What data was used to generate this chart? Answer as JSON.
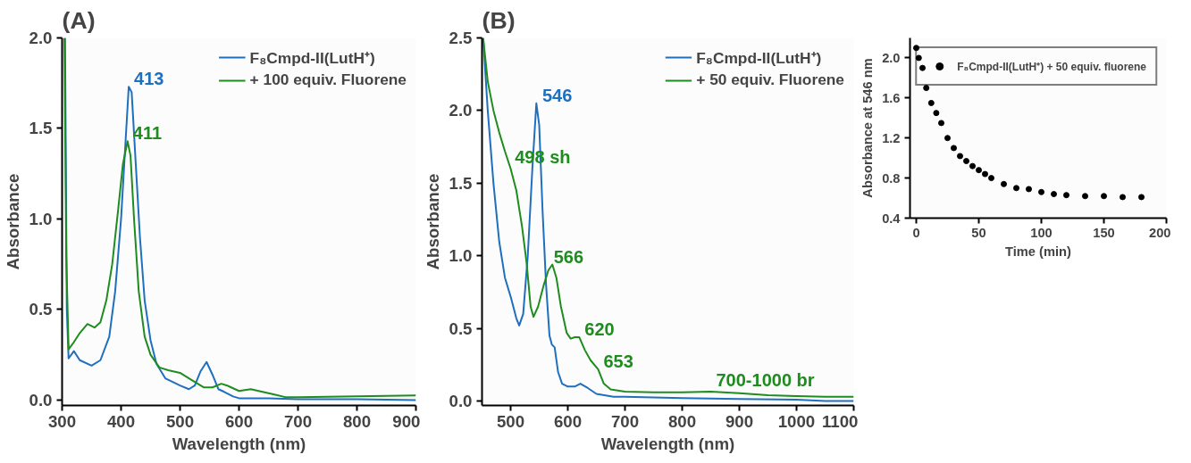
{
  "chart_data": [
    {
      "type": "line",
      "title": "(A)",
      "xlabel": "Wavelength (nm)",
      "ylabel": "Absorbance",
      "xlim": [
        300,
        900
      ],
      "ylim": [
        -0.03,
        2.0
      ],
      "xticks": [
        300,
        400,
        500,
        600,
        700,
        800,
        900
      ],
      "yticks": [
        {
          "value": 0,
          "label": "0.0"
        },
        0.5,
        {
          "value": 1,
          "label": "1.0"
        },
        1.5,
        {
          "value": 2,
          "label": "2.0"
        }
      ],
      "grid": false,
      "legend": "top right",
      "series": [
        {
          "name": "F₈Cmpd-II(LutH⁺)",
          "color": "#1f6fbf",
          "x": [
            305,
            308,
            311,
            320,
            330,
            350,
            365,
            380,
            390,
            400,
            408,
            413,
            418,
            425,
            432,
            440,
            450,
            460,
            475,
            500,
            515,
            525,
            535,
            545,
            555,
            565,
            575,
            590,
            600,
            650,
            700,
            800,
            900
          ],
          "values": [
            2.0,
            0.5,
            0.23,
            0.27,
            0.22,
            0.19,
            0.22,
            0.35,
            0.6,
            1.0,
            1.45,
            1.73,
            1.7,
            1.3,
            0.9,
            0.55,
            0.33,
            0.2,
            0.12,
            0.08,
            0.06,
            0.08,
            0.16,
            0.21,
            0.14,
            0.06,
            0.045,
            0.02,
            0.01,
            0.01,
            0.005,
            0.005,
            0.0
          ]
        },
        {
          "name": "+ 100 equiv. Fluorene",
          "color": "#1e8c1e",
          "x": [
            304,
            307,
            311,
            320,
            330,
            343,
            355,
            365,
            375,
            385,
            395,
            403,
            411,
            416,
            422,
            430,
            440,
            450,
            465,
            480,
            500,
            520,
            540,
            555,
            570,
            580,
            600,
            620,
            640,
            660,
            680,
            700,
            800,
            900
          ],
          "values": [
            2.0,
            0.8,
            0.28,
            0.32,
            0.37,
            0.42,
            0.4,
            0.43,
            0.55,
            0.75,
            1.05,
            1.3,
            1.43,
            1.35,
            1.0,
            0.6,
            0.35,
            0.25,
            0.18,
            0.165,
            0.15,
            0.11,
            0.07,
            0.07,
            0.09,
            0.08,
            0.05,
            0.06,
            0.045,
            0.03,
            0.015,
            0.015,
            0.02,
            0.025
          ]
        }
      ],
      "annotations": [
        {
          "text": "413",
          "x": 413,
          "y": 1.73
        },
        {
          "text": "411",
          "x": 411,
          "y": 1.43
        }
      ]
    },
    {
      "type": "line",
      "title": "(B)",
      "xlabel": "Wavelength (nm)",
      "ylabel": "Absorbance",
      "xlim": [
        450,
        1100
      ],
      "ylim": [
        -0.03,
        2.5
      ],
      "xticks": [
        500,
        600,
        700,
        800,
        900,
        1000,
        1100
      ],
      "yticks": [
        {
          "value": 0,
          "label": "0.0"
        },
        0.5,
        {
          "value": 1,
          "label": "1.0"
        },
        1.5,
        {
          "value": 2,
          "label": "2.0"
        },
        2.5
      ],
      "grid": false,
      "legend": "top right",
      "series": [
        {
          "name": "F₈Cmpd-II(LutH⁺)",
          "color": "#1f6fbf",
          "x": [
            452,
            460,
            470,
            480,
            490,
            500,
            510,
            515,
            522,
            530,
            538,
            545,
            550,
            556,
            562,
            568,
            572,
            577,
            583,
            590,
            600,
            612,
            622,
            635,
            650,
            680,
            700,
            800,
            900,
            1000,
            1050,
            1100
          ],
          "values": [
            2.5,
            2.0,
            1.5,
            1.1,
            0.85,
            0.72,
            0.57,
            0.52,
            0.6,
            1.0,
            1.6,
            2.05,
            1.9,
            1.3,
            0.8,
            0.45,
            0.39,
            0.37,
            0.2,
            0.12,
            0.1,
            0.1,
            0.12,
            0.09,
            0.05,
            0.03,
            0.03,
            0.02,
            0.015,
            0.01,
            0.0,
            0.0
          ]
        },
        {
          "name": "+ 50 equiv. Fluorene",
          "color": "#1e8c1e",
          "x": [
            452,
            460,
            470,
            480,
            490,
            500,
            510,
            520,
            528,
            535,
            540,
            548,
            558,
            566,
            573,
            580,
            588,
            598,
            605,
            612,
            620,
            630,
            640,
            653,
            663,
            675,
            700,
            750,
            800,
            850,
            900,
            950,
            1000,
            1050,
            1100
          ],
          "values": [
            2.5,
            2.2,
            2.0,
            1.85,
            1.72,
            1.6,
            1.45,
            1.2,
            0.95,
            0.65,
            0.58,
            0.65,
            0.8,
            0.9,
            0.94,
            0.85,
            0.65,
            0.47,
            0.43,
            0.44,
            0.44,
            0.35,
            0.28,
            0.22,
            0.12,
            0.08,
            0.065,
            0.06,
            0.06,
            0.065,
            0.055,
            0.04,
            0.035,
            0.03,
            0.03
          ]
        }
      ],
      "annotations": [
        {
          "text": "546",
          "x": 546,
          "y": 2.05
        },
        {
          "text": "498 sh",
          "x": 498,
          "y": 1.6
        },
        {
          "text": "566",
          "x": 566,
          "y": 0.94
        },
        {
          "text": "620",
          "x": 620,
          "y": 0.44
        },
        {
          "text": "653",
          "x": 653,
          "y": 0.22
        },
        {
          "text": "700-1000 br",
          "x": 850,
          "y": 0.065
        }
      ]
    },
    {
      "type": "scatter",
      "xlabel": "Time (min)",
      "ylabel": "Absorbance at 546 nm",
      "xlim": [
        -5,
        200
      ],
      "ylim": [
        0.4,
        2.2
      ],
      "xticks": [
        0,
        50,
        100,
        150,
        200
      ],
      "yticks": [
        0.4,
        0.8,
        1.2,
        1.6,
        {
          "value": 2,
          "label": "2.0"
        }
      ],
      "grid": false,
      "legend": "top right",
      "marker": "circle",
      "series": [
        {
          "name": "F₈Cmpd-II(LutH⁺) + 50 equiv. fluorene",
          "color": "#000000",
          "x": [
            0,
            2,
            5,
            8,
            12,
            16,
            20,
            25,
            30,
            35,
            40,
            45,
            50,
            55,
            60,
            70,
            80,
            90,
            100,
            110,
            120,
            135,
            150,
            165,
            180
          ],
          "values": [
            2.1,
            2.0,
            1.9,
            1.7,
            1.55,
            1.45,
            1.35,
            1.2,
            1.1,
            1.02,
            0.97,
            0.92,
            0.88,
            0.84,
            0.8,
            0.74,
            0.7,
            0.69,
            0.66,
            0.64,
            0.63,
            0.62,
            0.62,
            0.61,
            0.61
          ]
        }
      ]
    }
  ]
}
